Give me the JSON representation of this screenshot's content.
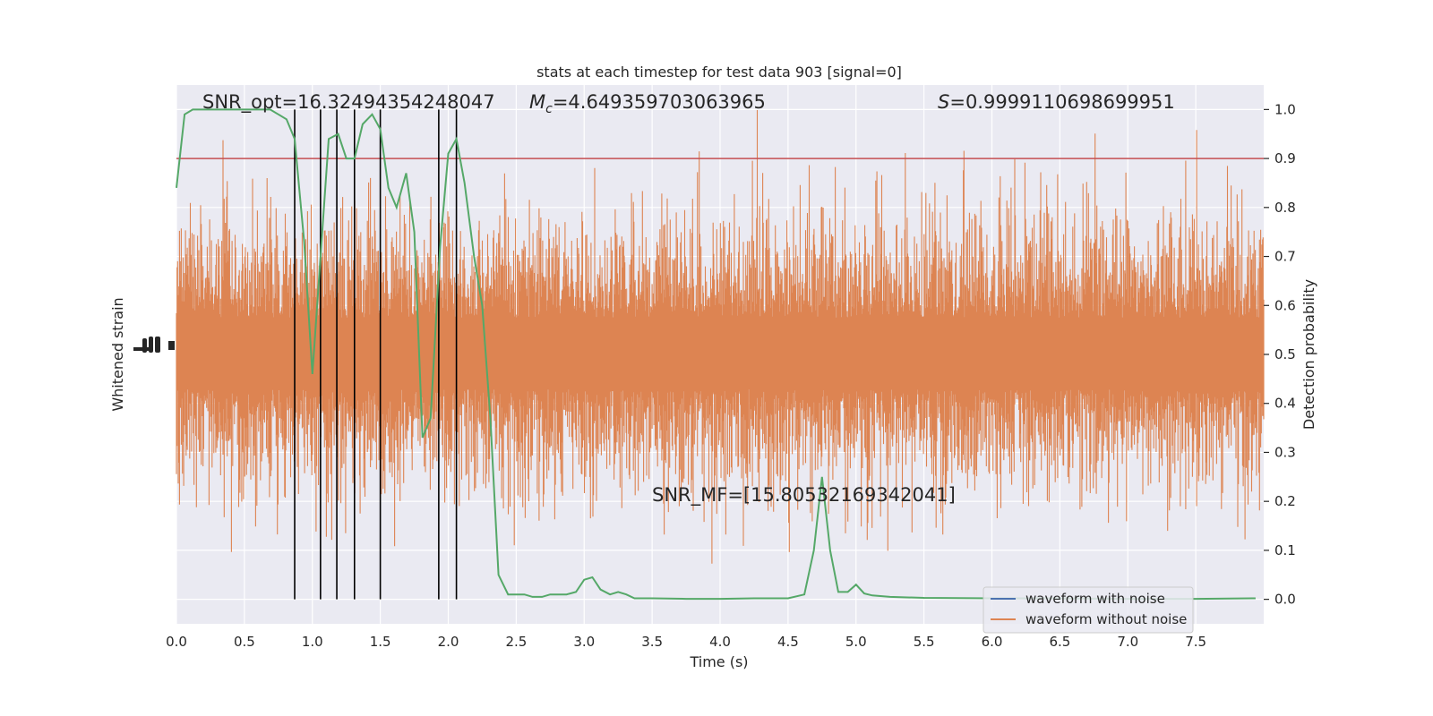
{
  "chart_data": {
    "type": "line",
    "title": "stats at each timestep for test data 903 [signal=0]",
    "xlabel": "Time (s)",
    "ylabel_left": "Whitened strain",
    "ylabel_right": "Detection probability",
    "xlim": [
      0.0,
      8.0
    ],
    "ylim_right": [
      -0.05,
      1.05
    ],
    "xticks": [
      "0.0",
      "0.5",
      "1.0",
      "1.5",
      "2.0",
      "2.5",
      "3.0",
      "3.5",
      "4.0",
      "4.5",
      "5.0",
      "5.5",
      "6.0",
      "6.5",
      "7.0",
      "7.5"
    ],
    "yticks_right": [
      "0.0",
      "0.1",
      "0.2",
      "0.3",
      "0.4",
      "0.5",
      "0.6",
      "0.7",
      "0.8",
      "0.9",
      "1.0"
    ],
    "threshold": 0.9,
    "grid": true,
    "legend_position": "bottom-right",
    "annotations": {
      "snr_opt": "SNR_opt=16.32494354248047",
      "mc_symbol": "M",
      "mc_sub": "c",
      "mc_value": "=4.649359703063965",
      "s_symbol": "S",
      "s_value": "=0.9999110698699951",
      "snr_mf": "SNR_MF=[15.80532169342041]"
    },
    "detection_times": [
      0.87,
      1.06,
      1.18,
      1.31,
      1.5,
      1.93,
      2.06
    ],
    "series": [
      {
        "name": "waveform with noise",
        "color": "#4c72b0"
      },
      {
        "name": "waveform without noise",
        "color": "#dd8452"
      },
      {
        "color": "#55a868",
        "x": [
          0.0,
          0.06,
          0.12,
          0.19,
          0.25,
          0.31,
          0.37,
          0.44,
          0.5,
          0.56,
          0.62,
          0.69,
          0.75,
          0.81,
          0.87,
          0.94,
          1.0,
          1.06,
          1.12,
          1.19,
          1.25,
          1.31,
          1.37,
          1.44,
          1.5,
          1.56,
          1.62,
          1.69,
          1.75,
          1.81,
          1.87,
          1.94,
          2.0,
          2.06,
          2.12,
          2.19,
          2.25,
          2.31,
          2.37,
          2.44,
          2.5,
          2.56,
          2.62,
          2.69,
          2.75,
          2.81,
          2.87,
          2.94,
          3.0,
          3.06,
          3.12,
          3.19,
          3.25,
          3.31,
          3.37,
          3.5,
          3.75,
          4.0,
          4.25,
          4.5,
          4.62,
          4.69,
          4.75,
          4.81,
          4.87,
          4.94,
          5.0,
          5.06,
          5.12,
          5.25,
          5.5,
          6.0,
          6.5,
          7.0,
          7.5,
          7.94
        ],
        "y": [
          0.84,
          0.99,
          1.0,
          1.0,
          1.0,
          1.0,
          1.0,
          1.0,
          1.0,
          1.0,
          1.0,
          1.0,
          0.99,
          0.98,
          0.94,
          0.73,
          0.46,
          0.7,
          0.94,
          0.95,
          0.9,
          0.9,
          0.97,
          0.99,
          0.96,
          0.84,
          0.8,
          0.87,
          0.75,
          0.33,
          0.37,
          0.72,
          0.91,
          0.94,
          0.85,
          0.7,
          0.6,
          0.37,
          0.05,
          0.01,
          0.01,
          0.01,
          0.005,
          0.005,
          0.01,
          0.01,
          0.01,
          0.015,
          0.04,
          0.045,
          0.02,
          0.01,
          0.015,
          0.01,
          0.002,
          0.002,
          0.001,
          0.001,
          0.002,
          0.002,
          0.01,
          0.1,
          0.25,
          0.1,
          0.015,
          0.015,
          0.03,
          0.012,
          0.008,
          0.005,
          0.003,
          0.002,
          0.002,
          0.001,
          0.001,
          0.002
        ]
      }
    ]
  }
}
